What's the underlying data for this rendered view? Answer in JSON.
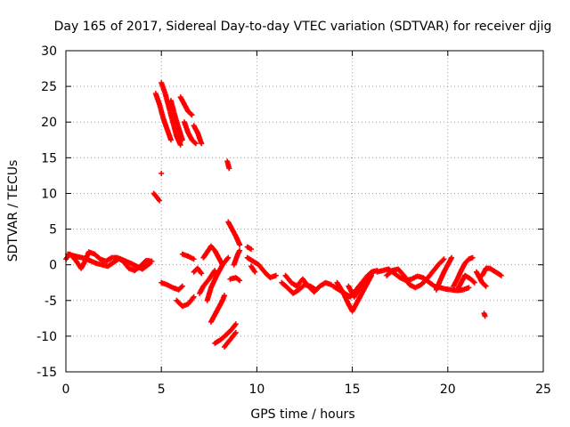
{
  "chart_data": {
    "type": "scatter",
    "title": "Day 165 of 2017, Sidereal Day-to-day VTEC variation (SDTVAR) for receiver djig",
    "xlabel": "GPS time / hours",
    "ylabel": "SDTVAR / TECUs",
    "xlim": [
      0,
      25
    ],
    "ylim": [
      -15,
      30
    ],
    "xticks": [
      0,
      5,
      10,
      15,
      20,
      25
    ],
    "yticks": [
      -15,
      -10,
      -5,
      0,
      5,
      10,
      15,
      20,
      25,
      30
    ],
    "grid": true,
    "marker": "+",
    "color": "#ff0000",
    "series": [
      {
        "name": "SDTVAR",
        "segments": [
          [
            [
              0.0,
              0.8
            ],
            [
              0.2,
              1.5
            ],
            [
              0.4,
              1.0
            ],
            [
              0.6,
              0.3
            ],
            [
              0.8,
              -0.5
            ],
            [
              1.0,
              0.5
            ],
            [
              1.2,
              1.8
            ],
            [
              1.5,
              1.5
            ],
            [
              1.8,
              0.8
            ],
            [
              2.1,
              0.5
            ],
            [
              2.4,
              1.0
            ],
            [
              2.7,
              1.0
            ],
            [
              3.0,
              0.5
            ],
            [
              3.3,
              -0.5
            ],
            [
              3.6,
              -0.8
            ],
            [
              3.9,
              -0.2
            ],
            [
              4.2,
              0.6
            ],
            [
              4.5,
              0.5
            ]
          ],
          [
            [
              0.1,
              1.5
            ],
            [
              0.5,
              1.2
            ],
            [
              1.0,
              0.9
            ],
            [
              1.6,
              0.2
            ],
            [
              2.2,
              -0.2
            ],
            [
              2.8,
              0.9
            ],
            [
              3.4,
              0.2
            ],
            [
              4.0,
              -0.6
            ],
            [
              4.4,
              0.2
            ]
          ],
          [
            [
              4.6,
              10.0
            ],
            [
              4.75,
              9.5
            ],
            [
              4.9,
              9.0
            ]
          ],
          [
            [
              5.0,
              12.8
            ]
          ],
          [
            [
              4.7,
              24.0
            ],
            [
              4.9,
              22.5
            ],
            [
              5.1,
              20.5
            ],
            [
              5.3,
              19.0
            ],
            [
              5.5,
              17.5
            ]
          ],
          [
            [
              5.0,
              25.5
            ],
            [
              5.2,
              24.0
            ],
            [
              5.4,
              22.0
            ],
            [
              5.6,
              20.0
            ],
            [
              5.8,
              18.0
            ],
            [
              6.0,
              16.8
            ]
          ],
          [
            [
              5.5,
              23.0
            ],
            [
              5.7,
              21.0
            ],
            [
              5.9,
              19.2
            ],
            [
              6.1,
              17.5
            ]
          ],
          [
            [
              6.0,
              23.5
            ],
            [
              6.2,
              22.5
            ],
            [
              6.4,
              21.5
            ],
            [
              6.6,
              21.0
            ]
          ],
          [
            [
              6.2,
              20.0
            ],
            [
              6.4,
              18.5
            ],
            [
              6.6,
              17.5
            ],
            [
              6.8,
              17.0
            ]
          ],
          [
            [
              6.7,
              19.5
            ],
            [
              6.9,
              18.5
            ],
            [
              7.1,
              17.0
            ]
          ],
          [
            [
              5.0,
              -2.5
            ],
            [
              5.3,
              -2.8
            ],
            [
              5.6,
              -3.2
            ],
            [
              5.9,
              -3.5
            ],
            [
              6.1,
              -3.0
            ]
          ],
          [
            [
              5.8,
              -5.0
            ],
            [
              6.1,
              -5.8
            ],
            [
              6.4,
              -5.5
            ],
            [
              6.7,
              -4.5
            ]
          ],
          [
            [
              6.1,
              1.5
            ],
            [
              6.4,
              1.2
            ],
            [
              6.7,
              0.8
            ]
          ],
          [
            [
              6.7,
              -1.0
            ],
            [
              6.9,
              -0.5
            ],
            [
              7.1,
              -1.2
            ]
          ],
          [
            [
              7.0,
              -4.0
            ],
            [
              7.2,
              -3.0
            ],
            [
              7.5,
              -2.0
            ],
            [
              7.8,
              -0.8
            ]
          ],
          [
            [
              7.2,
              1.0
            ],
            [
              7.4,
              1.8
            ],
            [
              7.6,
              2.6
            ],
            [
              7.8,
              2.0
            ],
            [
              8.0,
              1.0
            ],
            [
              8.2,
              0.0
            ]
          ],
          [
            [
              7.4,
              -5.0
            ],
            [
              7.6,
              -3.2
            ],
            [
              7.9,
              -1.5
            ],
            [
              8.2,
              0.0
            ],
            [
              8.5,
              1.0
            ]
          ],
          [
            [
              7.8,
              -11.0
            ],
            [
              8.1,
              -10.5
            ],
            [
              8.4,
              -9.8
            ],
            [
              8.7,
              -9.0
            ],
            [
              8.9,
              -8.3
            ]
          ],
          [
            [
              8.3,
              -11.5
            ],
            [
              8.6,
              -10.5
            ],
            [
              8.9,
              -9.5
            ]
          ],
          [
            [
              7.6,
              -8.0
            ],
            [
              7.8,
              -7.0
            ],
            [
              8.0,
              -6.0
            ],
            [
              8.2,
              -5.0
            ],
            [
              8.3,
              -4.3
            ]
          ],
          [
            [
              8.6,
              -2.0
            ],
            [
              8.9,
              -1.8
            ],
            [
              9.1,
              -2.2
            ]
          ],
          [
            [
              8.45,
              14.5
            ],
            [
              8.55,
              13.5
            ]
          ],
          [
            [
              8.5,
              6.0
            ],
            [
              8.7,
              5.0
            ],
            [
              8.9,
              4.0
            ],
            [
              9.1,
              2.8
            ]
          ],
          [
            [
              8.8,
              0.0
            ],
            [
              9.0,
              1.5
            ],
            [
              9.1,
              2.0
            ]
          ],
          [
            [
              9.5,
              2.5
            ],
            [
              9.7,
              2.2
            ]
          ],
          [
            [
              9.5,
              1.0
            ],
            [
              9.8,
              0.5
            ],
            [
              10.1,
              0.0
            ],
            [
              10.4,
              -1.0
            ],
            [
              10.7,
              -1.8
            ],
            [
              11.0,
              -1.5
            ]
          ],
          [
            [
              9.7,
              -0.2
            ],
            [
              9.9,
              -1.0
            ]
          ],
          [
            [
              11.3,
              -2.5
            ],
            [
              11.6,
              -3.2
            ],
            [
              11.9,
              -4.0
            ],
            [
              12.2,
              -3.5
            ],
            [
              12.5,
              -2.8
            ],
            [
              12.8,
              -3.0
            ],
            [
              13.1,
              -3.5
            ]
          ],
          [
            [
              11.5,
              -1.5
            ],
            [
              11.8,
              -2.5
            ],
            [
              12.1,
              -3.0
            ],
            [
              12.4,
              -2.0
            ],
            [
              12.7,
              -3.0
            ],
            [
              13.0,
              -3.8
            ],
            [
              13.3,
              -3.0
            ],
            [
              13.6,
              -2.5
            ],
            [
              13.9,
              -2.8
            ]
          ],
          [
            [
              14.0,
              -3.0
            ],
            [
              14.3,
              -3.5
            ],
            [
              14.6,
              -4.0
            ],
            [
              14.9,
              -4.5
            ],
            [
              15.2,
              -3.5
            ],
            [
              15.5,
              -2.5
            ],
            [
              15.8,
              -1.5
            ],
            [
              16.1,
              -1.0
            ]
          ],
          [
            [
              14.2,
              -2.5
            ],
            [
              14.5,
              -3.8
            ],
            [
              14.8,
              -5.5
            ],
            [
              15.0,
              -6.5
            ],
            [
              15.2,
              -5.5
            ],
            [
              15.4,
              -4.5
            ],
            [
              15.6,
              -3.5
            ],
            [
              15.8,
              -2.5
            ],
            [
              16.0,
              -1.5
            ]
          ],
          [
            [
              14.8,
              -3.0
            ],
            [
              15.1,
              -4.5
            ],
            [
              15.4,
              -3.2
            ],
            [
              15.7,
              -2.0
            ],
            [
              16.0,
              -1.0
            ],
            [
              16.3,
              -0.8
            ]
          ],
          [
            [
              16.3,
              -1.0
            ],
            [
              16.6,
              -0.8
            ],
            [
              16.9,
              -0.6
            ],
            [
              17.2,
              -1.2
            ],
            [
              17.5,
              -1.8
            ],
            [
              17.8,
              -2.2
            ],
            [
              18.1,
              -2.0
            ],
            [
              18.4,
              -1.6
            ],
            [
              18.7,
              -1.8
            ],
            [
              19.0,
              -2.4
            ],
            [
              19.3,
              -3.0
            ],
            [
              19.6,
              -3.2
            ],
            [
              19.9,
              -3.4
            ],
            [
              20.2,
              -3.5
            ],
            [
              20.5,
              -3.6
            ],
            [
              20.8,
              -3.5
            ],
            [
              21.1,
              -3.2
            ]
          ],
          [
            [
              16.8,
              -1.5
            ],
            [
              17.1,
              -0.8
            ],
            [
              17.4,
              -0.6
            ],
            [
              17.7,
              -1.5
            ],
            [
              18.0,
              -2.8
            ],
            [
              18.3,
              -3.2
            ],
            [
              18.6,
              -2.8
            ],
            [
              18.9,
              -2.0
            ],
            [
              19.2,
              -1.0
            ],
            [
              19.5,
              0.0
            ],
            [
              19.8,
              0.8
            ]
          ],
          [
            [
              19.4,
              -3.5
            ],
            [
              19.6,
              -2.2
            ],
            [
              19.8,
              -1.0
            ],
            [
              20.0,
              0.0
            ],
            [
              20.2,
              1.0
            ]
          ],
          [
            [
              20.3,
              -3.0
            ],
            [
              20.5,
              -2.0
            ],
            [
              20.7,
              -0.8
            ],
            [
              20.9,
              0.2
            ],
            [
              21.1,
              0.8
            ],
            [
              21.3,
              1.0
            ]
          ],
          [
            [
              20.5,
              -3.5
            ],
            [
              20.7,
              -2.5
            ],
            [
              20.9,
              -1.5
            ],
            [
              21.2,
              -2.0
            ],
            [
              21.4,
              -2.5
            ]
          ],
          [
            [
              21.5,
              -1.0
            ],
            [
              21.8,
              -2.5
            ],
            [
              22.0,
              -3.0
            ]
          ],
          [
            [
              21.8,
              -1.5
            ],
            [
              22.0,
              -0.5
            ],
            [
              22.2,
              -0.5
            ],
            [
              22.5,
              -1.0
            ],
            [
              22.8,
              -1.5
            ]
          ],
          [
            [
              21.9,
              -6.8
            ],
            [
              21.95,
              -7.2
            ]
          ]
        ]
      }
    ]
  }
}
